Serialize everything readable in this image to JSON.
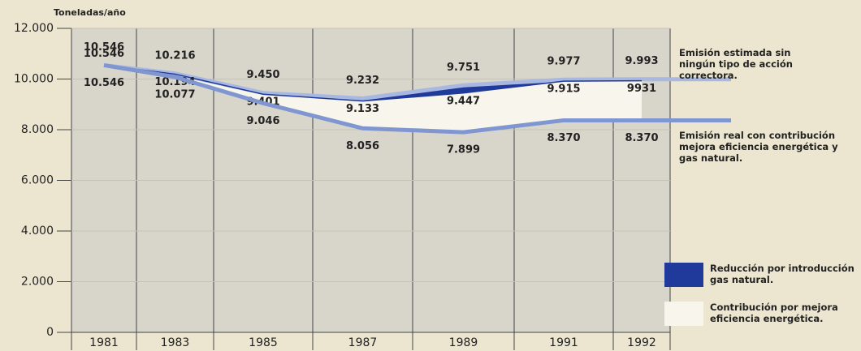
{
  "chart_data": {
    "type": "line",
    "y_label": "Toneladas/año",
    "categories": [
      "1981",
      "1983",
      "1985",
      "1987",
      "1989",
      "1991",
      "1992"
    ],
    "series": [
      {
        "name": "Emisión estimada sin ningún tipo de acción correctora.",
        "color": "#a9b8e0",
        "values": [
          10546,
          10216,
          9450,
          9232,
          9751,
          9977,
          9993
        ],
        "value_labels": [
          "10.546",
          "10.216",
          "9.450",
          "9.232",
          "9.751",
          "9.977",
          "9.993"
        ]
      },
      {
        "color": "#1f3a9a",
        "values": [
          10546,
          10194,
          9401,
          9133,
          9447,
          9915,
          9931
        ],
        "value_labels": [
          "10.546",
          "10.194",
          "9.401",
          "9.133",
          "9.447",
          "9.915",
          "9931"
        ]
      },
      {
        "name": "Emisión real con contribución mejora eficiencia energética y gas natural.",
        "color": "#8096d0",
        "values": [
          10546,
          10077,
          9046,
          8056,
          7899,
          8370,
          8370
        ],
        "value_labels": [
          "10.546",
          "10.077",
          "9.046",
          "8.056",
          "7.899",
          "8.370",
          "8.370"
        ]
      }
    ],
    "bands": [
      {
        "label": "Reducción por introducción gas natural.",
        "color": "#1f3a9a"
      },
      {
        "label": "Contribución por mejora eficiencia energética.",
        "color": "#f7f5ec"
      }
    ],
    "ylim": [
      0,
      12000
    ],
    "yticks": [
      0,
      {
        "value": 2000,
        "label": "2.000"
      },
      {
        "value": 4000,
        "label": "4.000"
      },
      {
        "value": 6000,
        "label": "6.000"
      },
      {
        "value": 8000,
        "label": "8.000"
      },
      {
        "value": 10000,
        "label": "10.000"
      },
      {
        "value": 12000,
        "label": "12.000"
      }
    ]
  }
}
